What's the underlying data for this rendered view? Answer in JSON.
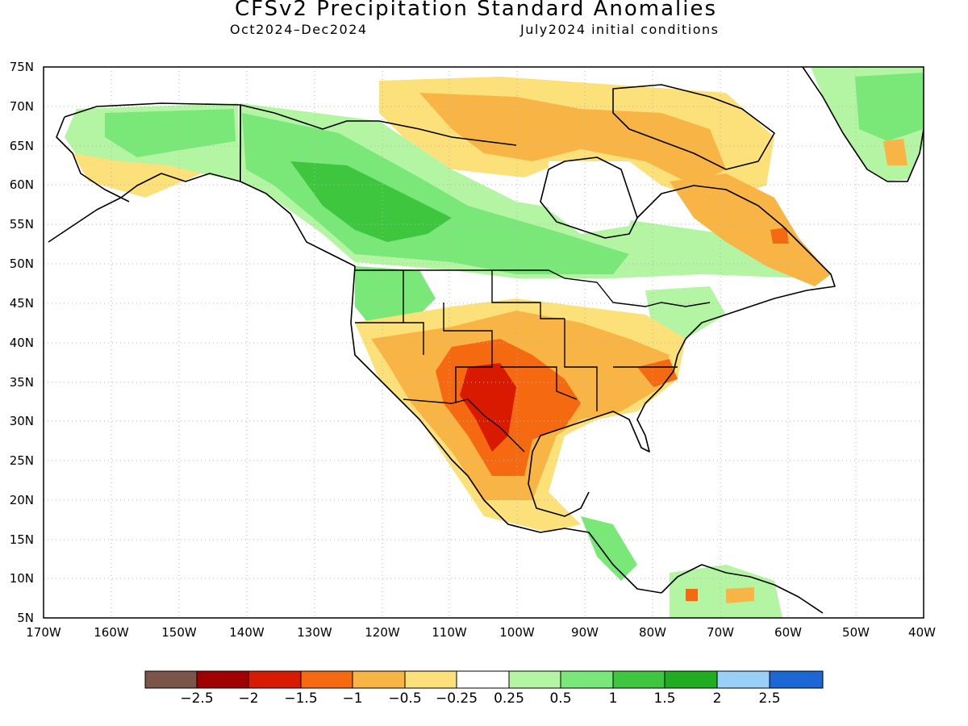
{
  "title": "CFSv2 Precipitation Standard Anomalies",
  "subtitle_left": "Oct2024–Dec2024",
  "subtitle_right": "July2024 initial conditions",
  "y_axis_labels": [
    "75N",
    "70N",
    "65N",
    "60N",
    "55N",
    "50N",
    "45N",
    "40N",
    "35N",
    "30N",
    "25N",
    "20N",
    "15N",
    "10N",
    "5N"
  ],
  "x_axis_labels": [
    "170W",
    "160W",
    "150W",
    "140W",
    "130W",
    "120W",
    "110W",
    "100W",
    "90W",
    "80W",
    "70W",
    "60W",
    "50W",
    "40W"
  ],
  "chart_data": {
    "type": "heatmap",
    "title": "CFSv2 Precipitation Standard Anomalies",
    "lat_range": [
      5,
      75
    ],
    "lon_range": [
      -170,
      -40
    ],
    "grid": true,
    "colorbar": {
      "labels": [
        "−2.5",
        "−2",
        "−1.5",
        "−1",
        "−0.5",
        "−0.25",
        "0.25",
        "0.5",
        "1",
        "1.5",
        "2",
        "2.5"
      ],
      "colors": [
        "#7a5548",
        "#a00000",
        "#d81a00",
        "#f56a10",
        "#f8b545",
        "#fce07a",
        "#ffffff",
        "#b4f5a4",
        "#7ae878",
        "#3ec63e",
        "#22ac22",
        "#98d0f8",
        "#1c66d6"
      ]
    }
  }
}
